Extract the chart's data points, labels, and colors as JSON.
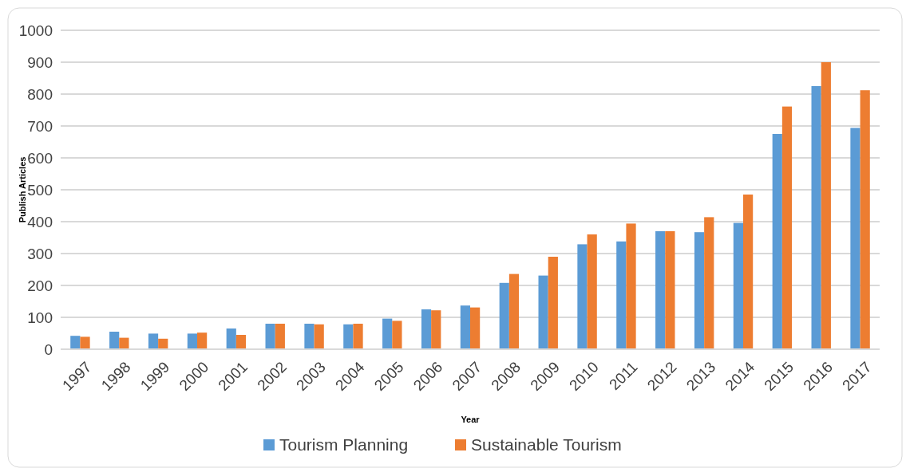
{
  "chart_data": {
    "type": "bar",
    "xlabel": "Year",
    "ylabel": "Publish Articles",
    "categories": [
      "1997",
      "1998",
      "1999",
      "2000",
      "2001",
      "2002",
      "2003",
      "2004",
      "2005",
      "2006",
      "2007",
      "2008",
      "2009",
      "2010",
      "2011",
      "2012",
      "2013",
      "2014",
      "2015",
      "2016",
      "2017"
    ],
    "series": [
      {
        "name": "Tourism Planning",
        "color": "#5b9bd5",
        "values": [
          42,
          55,
          49,
          49,
          65,
          80,
          80,
          78,
          96,
          125,
          137,
          208,
          231,
          329,
          338,
          370,
          367,
          396,
          675,
          825,
          694
        ]
      },
      {
        "name": "Sustainable Tourism",
        "color": "#ed7d31",
        "values": [
          39,
          36,
          33,
          52,
          45,
          80,
          78,
          80,
          89,
          122,
          131,
          236,
          290,
          360,
          394,
          370,
          414,
          485,
          761,
          900,
          812
        ]
      }
    ],
    "ylim": [
      0,
      1000
    ],
    "yticks": [
      0,
      100,
      200,
      300,
      400,
      500,
      600,
      700,
      800,
      900,
      1000
    ],
    "grid": "y",
    "legend": "bottom"
  }
}
